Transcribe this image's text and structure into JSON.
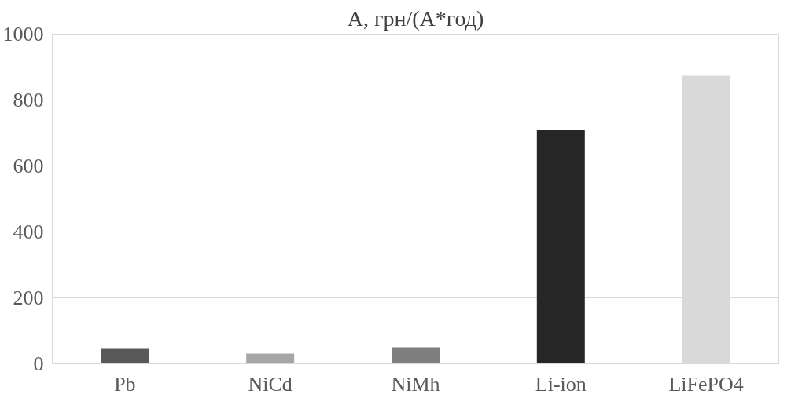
{
  "chart_data": {
    "type": "bar",
    "title": "А, грн/(А*год)",
    "categories": [
      "Pb",
      "NiCd",
      "NiMh",
      "Li-ion",
      "LiFePO4"
    ],
    "values": [
      45,
      31,
      50,
      709,
      874
    ],
    "colors": [
      "#595959",
      "#a6a6a6",
      "#7f7f7f",
      "#262626",
      "#d9d9d9"
    ],
    "ylim": [
      0,
      1000
    ],
    "yticks": [
      0,
      200,
      400,
      600,
      800,
      1000
    ],
    "grid": "y"
  }
}
